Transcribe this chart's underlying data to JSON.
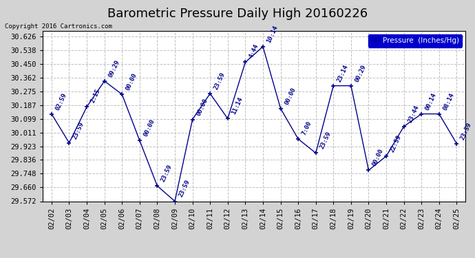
{
  "title": "Barometric Pressure Daily High 20160226",
  "copyright": "Copyright 2016 Cartronics.com",
  "legend_label": "Pressure  (Inches/Hg)",
  "dates": [
    "02/02",
    "02/03",
    "02/04",
    "02/05",
    "02/06",
    "02/07",
    "02/08",
    "02/09",
    "02/10",
    "02/11",
    "02/12",
    "02/13",
    "02/14",
    "02/15",
    "02/16",
    "02/17",
    "02/18",
    "02/19",
    "02/20",
    "02/21",
    "02/22",
    "02/23",
    "02/24",
    "02/25"
  ],
  "pressure": [
    30.13,
    29.945,
    30.175,
    30.34,
    30.255,
    29.96,
    29.67,
    29.572,
    30.095,
    30.26,
    30.1,
    30.46,
    30.56,
    30.165,
    29.97,
    29.88,
    30.31,
    30.31,
    29.77,
    29.86,
    30.05,
    30.13,
    30.13,
    29.94
  ],
  "times": [
    "02:59",
    "23:59",
    "2:15",
    "09:29",
    "00:00",
    "00:00",
    "23:59",
    "23:59",
    "00:00",
    "23:59",
    "11:14",
    "4:44",
    "10:14",
    "00:00",
    "7:00",
    "23:59",
    "23:14",
    "00:29",
    "00:00",
    "22:59",
    "23:44",
    "00:14",
    "08:14",
    "23:59"
  ],
  "ylim_min": 29.572,
  "ylim_max": 30.66,
  "yticks": [
    29.572,
    29.66,
    29.748,
    29.836,
    29.923,
    30.011,
    30.099,
    30.187,
    30.275,
    30.362,
    30.45,
    30.538,
    30.626
  ],
  "line_color": "#00008B",
  "bg_color": "#D3D3D3",
  "plot_bg_color": "#FFFFFF",
  "grid_color": "#C0C0C0",
  "title_fontsize": 13,
  "tick_fontsize": 7.5,
  "annot_fontsize": 6.5
}
